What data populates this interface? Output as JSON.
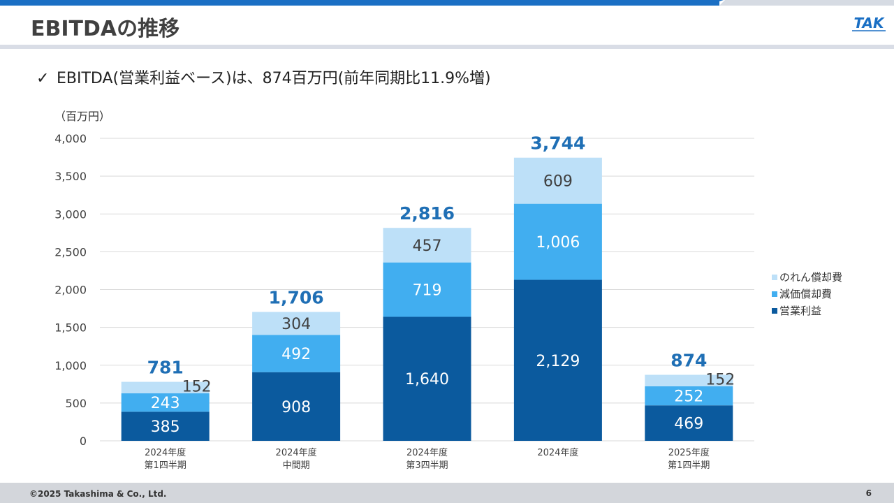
{
  "header": {
    "title": "EBITDAの推移",
    "logo_text": "TAK"
  },
  "bullet": {
    "check": "✓",
    "text": "EBITDA(営業利益ベース)は、874百万円(前年同期比11.9%増)"
  },
  "colors": {
    "accent": "#1a6fc4",
    "operating_income": "#0b5a9e",
    "depreciation": "#41aef0",
    "goodwill": "#bde0f8",
    "total_label": "#1f6fb5"
  },
  "chart_data": {
    "type": "bar",
    "stacked": true,
    "unit_label": "（百万円）",
    "ylim": [
      0,
      4000
    ],
    "yticks": [
      "0",
      "500",
      "1,000",
      "1,500",
      "2,000",
      "2,500",
      "3,000",
      "3,500",
      "4,000"
    ],
    "grid": true,
    "legend_position": "right",
    "categories": [
      [
        "2024年度",
        "第1四半期"
      ],
      [
        "2024年度",
        "中間期"
      ],
      [
        "2024年度",
        "第3四半期"
      ],
      [
        "2024年度"
      ],
      [
        "2025年度",
        "第1四半期"
      ]
    ],
    "series": [
      {
        "name": "営業利益",
        "values": [
          385,
          908,
          1640,
          2129,
          469
        ],
        "labels": [
          "385",
          "908",
          "1,640",
          "2,129",
          "469"
        ]
      },
      {
        "name": "減価償却費",
        "values": [
          243,
          492,
          719,
          1006,
          252
        ],
        "labels": [
          "243",
          "492",
          "719",
          "1,006",
          "252"
        ]
      },
      {
        "name": "のれん償却費",
        "values": [
          152,
          304,
          457,
          609,
          152
        ],
        "labels": [
          "152",
          "304",
          "457",
          "609",
          "152"
        ]
      }
    ],
    "totals": [
      781,
      1706,
      2816,
      3744,
      874
    ],
    "total_labels": [
      "781",
      "1,706",
      "2,816",
      "3,744",
      "874"
    ],
    "legend_order": [
      "のれん償却費",
      "減価償却費",
      "営業利益"
    ]
  },
  "footer": {
    "copyright": "©2025 Takashima & Co., Ltd.",
    "page": "6"
  }
}
